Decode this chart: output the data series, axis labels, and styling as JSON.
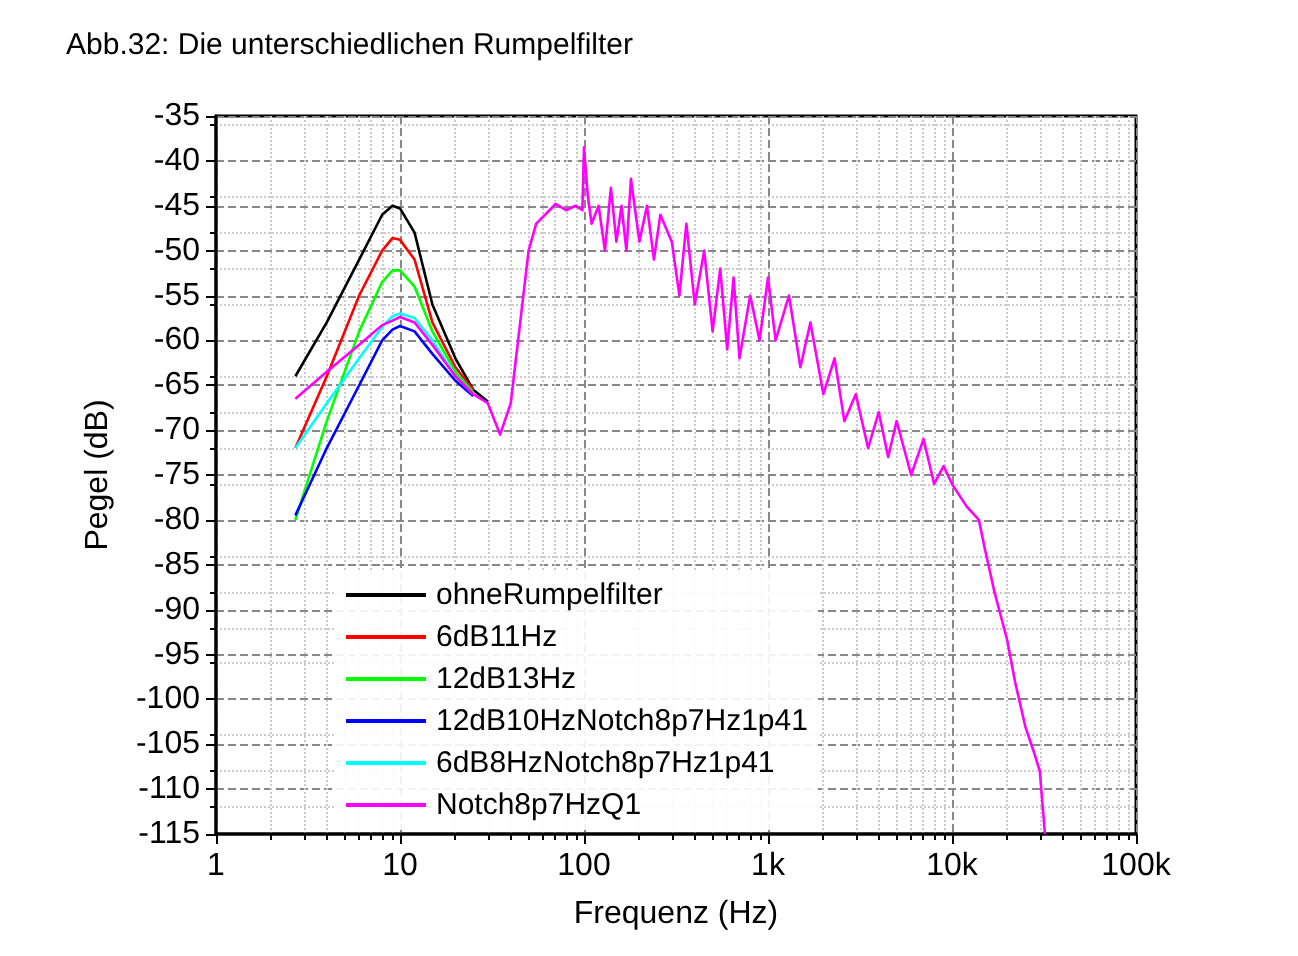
{
  "chart_data": {
    "type": "line",
    "title": "Abb.32: Die unterschiedlichen Rumpelfilter",
    "xlabel": "Frequenz (Hz)",
    "ylabel": "Pegel (dB)",
    "x": [
      2.7,
      4,
      6,
      8,
      9.1,
      10,
      12,
      15,
      20,
      25,
      30,
      35,
      40,
      45,
      50,
      55,
      65,
      70,
      80,
      90,
      98,
      100,
      105,
      110,
      120,
      130,
      140,
      150,
      160,
      170,
      180,
      200,
      220,
      240,
      260,
      300,
      330,
      360,
      400,
      450,
      500,
      550,
      600,
      650,
      700,
      800,
      900,
      1000,
      1100,
      1300,
      1500,
      1700,
      2000,
      2300,
      2600,
      3000,
      3500,
      4000,
      4500,
      5000,
      6000,
      7000,
      8000,
      9000,
      10000,
      12000,
      14000,
      15000,
      17000,
      20000,
      22000,
      25000,
      28000,
      30000,
      32000
    ],
    "series": [
      {
        "name": "ohneRumpelfilter",
        "color": "#000000",
        "values": [
          -64,
          -58,
          -51,
          -46,
          -45,
          -45.3,
          -48,
          -56,
          -62,
          -65.5,
          -66.8,
          null,
          null,
          null,
          null,
          null,
          null,
          null,
          null,
          null,
          null,
          null,
          null,
          null,
          null,
          null,
          null,
          null,
          null,
          null,
          null,
          null,
          null,
          null,
          null,
          null,
          null,
          null,
          null,
          null,
          null,
          null,
          null,
          null,
          null,
          null,
          null,
          null,
          null,
          null,
          null,
          null,
          null,
          null,
          null,
          null,
          null,
          null,
          null,
          null,
          null,
          null,
          null,
          null,
          null,
          null,
          null,
          null,
          null,
          null,
          null,
          null,
          null,
          null,
          null
        ]
      },
      {
        "name": "6dB11Hz",
        "color": "#ff0000",
        "values": [
          -72,
          -64,
          -55,
          -50,
          -48.6,
          -48.8,
          -51,
          -58,
          -63,
          -65.5,
          null,
          null,
          null,
          null,
          null,
          null,
          null,
          null,
          null,
          null,
          null,
          null,
          null,
          null,
          null,
          null,
          null,
          null,
          null,
          null,
          null,
          null,
          null,
          null,
          null,
          null,
          null,
          null,
          null,
          null,
          null,
          null,
          null,
          null,
          null,
          null,
          null,
          null,
          null,
          null,
          null,
          null,
          null,
          null,
          null,
          null,
          null,
          null,
          null,
          null,
          null,
          null,
          null,
          null,
          null,
          null,
          null,
          null,
          null,
          null,
          null,
          null,
          null,
          null,
          null
        ]
      },
      {
        "name": "12dB13Hz",
        "color": "#00ff00",
        "values": [
          -80,
          -69,
          -59,
          -53.5,
          -52.2,
          -52.2,
          -54,
          -59,
          -63.5,
          -65.8,
          null,
          null,
          null,
          null,
          null,
          null,
          null,
          null,
          null,
          null,
          null,
          null,
          null,
          null,
          null,
          null,
          null,
          null,
          null,
          null,
          null,
          null,
          null,
          null,
          null,
          null,
          null,
          null,
          null,
          null,
          null,
          null,
          null,
          null,
          null,
          null,
          null,
          null,
          null,
          null,
          null,
          null,
          null,
          null,
          null,
          null,
          null,
          null,
          null,
          null,
          null,
          null,
          null,
          null,
          null,
          null,
          null,
          null,
          null,
          null,
          null,
          null,
          null,
          null,
          null
        ]
      },
      {
        "name": "12dB10HzNotch8p7Hz1p41",
        "color": "#0000ff",
        "values": [
          -79.5,
          -72,
          -65,
          -60,
          -58.8,
          -58.4,
          -59,
          -61.5,
          -64.5,
          -66.2,
          null,
          null,
          null,
          null,
          null,
          null,
          null,
          null,
          null,
          null,
          null,
          null,
          null,
          null,
          null,
          null,
          null,
          null,
          null,
          null,
          null,
          null,
          null,
          null,
          null,
          null,
          null,
          null,
          null,
          null,
          null,
          null,
          null,
          null,
          null,
          null,
          null,
          null,
          null,
          null,
          null,
          null,
          null,
          null,
          null,
          null,
          null,
          null,
          null,
          null,
          null,
          null,
          null,
          null,
          null,
          null,
          null,
          null,
          null,
          null,
          null,
          null,
          null,
          null,
          null
        ]
      },
      {
        "name": "6dB8HzNotch8p7Hz1p41",
        "color": "#00ffff",
        "values": [
          -72,
          -67,
          -62,
          -58.5,
          -57.3,
          -57,
          -57.5,
          -60,
          -64,
          -66,
          null,
          null,
          null,
          null,
          null,
          null,
          null,
          null,
          null,
          null,
          null,
          null,
          null,
          null,
          null,
          null,
          null,
          null,
          null,
          null,
          null,
          null,
          null,
          null,
          null,
          null,
          null,
          null,
          null,
          null,
          null,
          null,
          null,
          null,
          null,
          null,
          null,
          null,
          null,
          null,
          null,
          null,
          null,
          null,
          null,
          null,
          null,
          null,
          null,
          null,
          null,
          null,
          null,
          null,
          null,
          null,
          null,
          null,
          null,
          null,
          null,
          null,
          null,
          null,
          null
        ]
      },
      {
        "name": "Notch8p7HzQ1",
        "color": "#ff00ff",
        "values": [
          -66.5,
          -63.5,
          -60.5,
          -58.3,
          -57.8,
          -57.4,
          -58,
          -60.5,
          -64,
          -66,
          -67,
          -70.5,
          -67,
          -58,
          -50,
          -47,
          -45.5,
          -44.8,
          -45.5,
          -45,
          -45.5,
          -38.5,
          -44,
          -47,
          -45,
          -50,
          -43,
          -49,
          -45,
          -50,
          -42,
          -49,
          -45,
          -51,
          -46,
          -49,
          -55,
          -47,
          -56,
          -50,
          -59,
          -52,
          -61,
          -53,
          -62,
          -55,
          -60,
          -53,
          -60,
          -55,
          -63,
          -58,
          -66,
          -62,
          -69,
          -66,
          -72,
          -68,
          -73,
          -69,
          -75,
          -71,
          -76,
          -74,
          -76,
          -78.5,
          -80,
          -83,
          -88,
          -93.5,
          -98,
          -103,
          -106,
          -108,
          -115
        ]
      }
    ],
    "xlim": [
      1,
      100000
    ],
    "xticks": [
      1,
      10,
      100,
      {
        "value": 1000,
        "label": "1k"
      },
      {
        "value": 10000,
        "label": "10k"
      },
      {
        "value": 100000,
        "label": "100k"
      }
    ],
    "ylim": [
      -115,
      -35
    ],
    "yticks": [
      -115,
      -110,
      -105,
      -100,
      -95,
      -90,
      -85,
      -80,
      -75,
      -70,
      -65,
      -60,
      -55,
      -50,
      -45,
      -40,
      -35
    ],
    "log": "x",
    "grid": true,
    "legend": "bottom left",
    "line_style": "solid",
    "marker": "none"
  }
}
